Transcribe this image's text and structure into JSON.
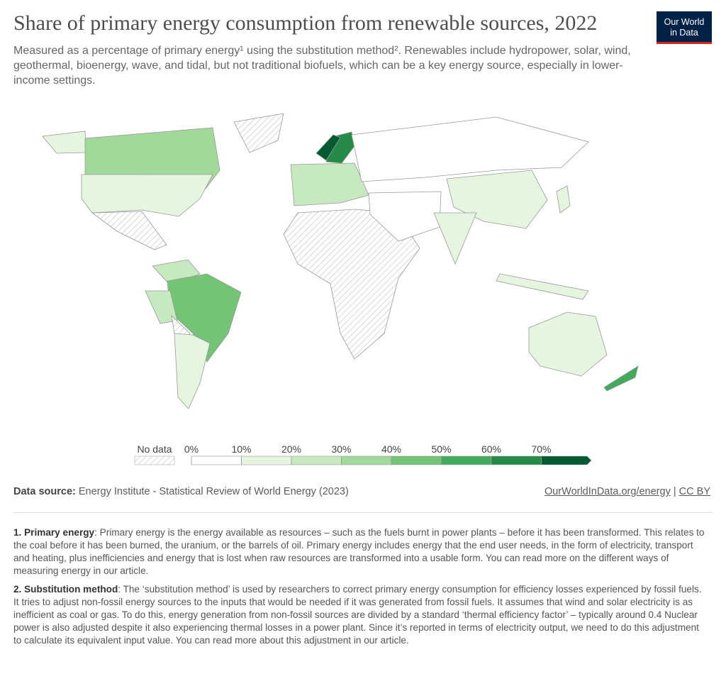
{
  "header": {
    "title": "Share of primary energy consumption from renewable sources, 2022",
    "subtitle": "Measured as a percentage of primary energy¹ using the substitution method². Renewables include hydropower, solar, wind, geothermal, bioenergy, wave, and tidal, but not traditional biofuels, which can be a key energy source, especially in lower-income settings.",
    "logo": [
      "Our World",
      "in Data"
    ]
  },
  "legend": {
    "no_data_label": "No data",
    "ticks": [
      {
        "value": 0,
        "label": "0%"
      },
      {
        "value": 10,
        "label": "10%"
      },
      {
        "value": 20,
        "label": "20%"
      },
      {
        "value": 30,
        "label": "30%"
      },
      {
        "value": 40,
        "label": "40%"
      },
      {
        "value": 50,
        "label": "50%"
      },
      {
        "value": 60,
        "label": "60%"
      },
      {
        "value": 70,
        "label": "70%"
      }
    ],
    "colors": [
      "#ffffff",
      "#e5f5e0",
      "#c7e9c0",
      "#a1d99b",
      "#74c476",
      "#41ab5d",
      "#238b45",
      "#005a32"
    ]
  },
  "source": {
    "label": "Data source:",
    "text": "Energy Institute - Statistical Review of World Energy (2023)",
    "link": "OurWorldInData.org/energy",
    "separator": "|",
    "license": "CC BY"
  },
  "notes": [
    {
      "label": "1. Primary energy",
      "text": ": Primary energy is the energy available as resources – such as the fuels burnt in power plants – before it has been transformed. This relates to the coal before it has been burned, the uranium, or the barrels of oil. Primary energy includes energy that the end user needs, in the form of electricity, transport and heating, plus inefficiencies and energy that is lost when raw resources are transformed into a usable form. You can read more on the different ways of measuring energy in our article."
    },
    {
      "label": "2. Substitution method",
      "text": ": The ‘substitution method’ is used by researchers to correct primary energy consumption for efficiency losses experienced by fossil fuels. It tries to adjust non-fossil energy sources to the inputs that would be needed if it was generated from fossil fuels. It assumes that wind and solar electricity is as inefficient as coal or gas. To do this, energy generation from non-fossil sources are divided by a standard ‘thermal efficiency factor’ – typically around 0.4 Nuclear power is also adjusted despite it also experiencing thermal losses in a power plant. Since it’s reported in terms of electricity output, we need to do this adjustment to calculate its equivalent input value. You can read more about this adjustment in our article."
    }
  ]
}
